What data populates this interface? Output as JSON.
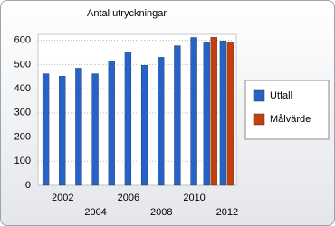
{
  "chart_data": {
    "type": "bar",
    "title": "Antal utryckningar",
    "categories": [
      null,
      "2002",
      null,
      "2004",
      null,
      "2006",
      null,
      "2008",
      null,
      "2010",
      null,
      "2012"
    ],
    "series": [
      {
        "name": "Utfall",
        "color": "#2563c8",
        "values": [
          462,
          452,
          485,
          462,
          515,
          553,
          497,
          530,
          578,
          612,
          590,
          598
        ]
      },
      {
        "name": "Målvärde",
        "color": "#c4400c",
        "values": [
          null,
          null,
          null,
          null,
          null,
          null,
          null,
          null,
          null,
          null,
          613,
          590
        ]
      }
    ],
    "ylim": [
      0,
      625
    ],
    "yticks": [
      0,
      100,
      200,
      300,
      400,
      500,
      600
    ],
    "grid": true,
    "legend": "right"
  }
}
